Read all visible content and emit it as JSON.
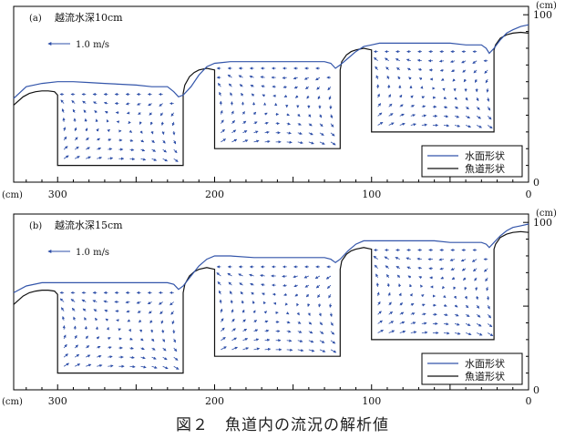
{
  "caption": "図２　魚道内の流況の解析値",
  "chart_data": [
    {
      "type": "quiver",
      "panel_label": "(a)",
      "title": "越流水深10cm",
      "reference_vector": "1.0 m/s",
      "x_unit": "(cm)",
      "y_unit": "(cm)",
      "xlim": [
        328,
        0
      ],
      "ylim": [
        0,
        105
      ],
      "x_ticks": [
        300,
        200,
        100,
        0
      ],
      "y_ticks": [
        0,
        100
      ],
      "legend_position": "bottom-right",
      "series": [
        {
          "name": "水面形状",
          "color": "#3355aa",
          "x": [
            328,
            320,
            310,
            300,
            290,
            280,
            270,
            250,
            240,
            230,
            226,
            223,
            220,
            215,
            210,
            205,
            200,
            195,
            190,
            175,
            160,
            150,
            140,
            130,
            126,
            123,
            120,
            115,
            110,
            105,
            100,
            95,
            90,
            80,
            70,
            60,
            50,
            40,
            30,
            27,
            25,
            22,
            18,
            14,
            10,
            5,
            0
          ],
          "y": [
            50,
            57,
            59,
            60,
            60,
            59.5,
            59,
            58,
            57,
            57,
            54,
            51,
            52,
            57,
            64,
            69,
            71,
            71.5,
            72,
            72,
            72,
            72,
            72,
            72,
            71,
            68,
            70,
            74,
            78,
            81,
            82,
            83,
            83,
            83,
            83,
            83,
            83,
            82,
            82,
            80,
            77,
            80,
            85,
            89,
            91,
            93,
            94
          ]
        },
        {
          "name": "魚道形状",
          "color": "#111111",
          "x": [
            328,
            322,
            318,
            314,
            310,
            306,
            302,
            300,
            300,
            220,
            220,
            219,
            216,
            213,
            210,
            205,
            200,
            200,
            120,
            120,
            119,
            116,
            113,
            110,
            105,
            100,
            100,
            22,
            22,
            21,
            18,
            14,
            10,
            5,
            0
          ],
          "y": [
            46,
            51,
            53,
            54,
            54.5,
            54.5,
            54,
            52,
            10,
            10,
            53,
            58,
            63,
            65.5,
            67,
            68,
            67,
            20,
            20,
            67,
            72,
            76,
            78,
            79,
            80,
            79,
            30,
            30,
            79,
            82,
            86,
            88,
            89,
            89.5,
            89
          ]
        }
      ]
    },
    {
      "type": "quiver",
      "panel_label": "(b)",
      "title": "越流水深15cm",
      "reference_vector": "1.0 m/s",
      "x_unit": "(cm)",
      "y_unit": "(cm)",
      "xlim": [
        328,
        0
      ],
      "ylim": [
        0,
        105
      ],
      "x_ticks": [
        300,
        200,
        100,
        0
      ],
      "y_ticks": [
        0,
        100
      ],
      "legend_position": "bottom-right",
      "series": [
        {
          "name": "水面形状",
          "color": "#3355aa",
          "x": [
            328,
            320,
            310,
            300,
            290,
            280,
            270,
            260,
            250,
            240,
            230,
            226,
            223,
            220,
            215,
            210,
            205,
            200,
            195,
            190,
            175,
            160,
            150,
            140,
            130,
            126,
            123,
            120,
            115,
            110,
            105,
            100,
            95,
            90,
            80,
            70,
            60,
            50,
            40,
            30,
            27,
            25,
            22,
            18,
            14,
            10,
            5,
            0
          ],
          "y": [
            58,
            62,
            64,
            64,
            64,
            64,
            64,
            64,
            64,
            64,
            64,
            63,
            60,
            62,
            68,
            74,
            78,
            80,
            80,
            80,
            79,
            79,
            79,
            79,
            79,
            78,
            76,
            78,
            83,
            87,
            89,
            89,
            89,
            89,
            89,
            89,
            89,
            88,
            88,
            88,
            87,
            85,
            88,
            92,
            95,
            97,
            98,
            99
          ]
        },
        {
          "name": "魚道形状",
          "color": "#111111",
          "x": [
            328,
            322,
            318,
            314,
            310,
            306,
            302,
            300,
            300,
            220,
            220,
            219,
            216,
            213,
            210,
            205,
            200,
            200,
            120,
            120,
            119,
            116,
            113,
            110,
            105,
            100,
            100,
            22,
            22,
            21,
            18,
            14,
            10,
            5,
            0
          ],
          "y": [
            51,
            56,
            58,
            59,
            59.5,
            59.5,
            59,
            57,
            10,
            10,
            58,
            63,
            68,
            70.5,
            72,
            73,
            72,
            20,
            20,
            72,
            77,
            81,
            83,
            84,
            85,
            84,
            30,
            30,
            84,
            87,
            91,
            93,
            94,
            94.5,
            94
          ]
        }
      ]
    }
  ]
}
